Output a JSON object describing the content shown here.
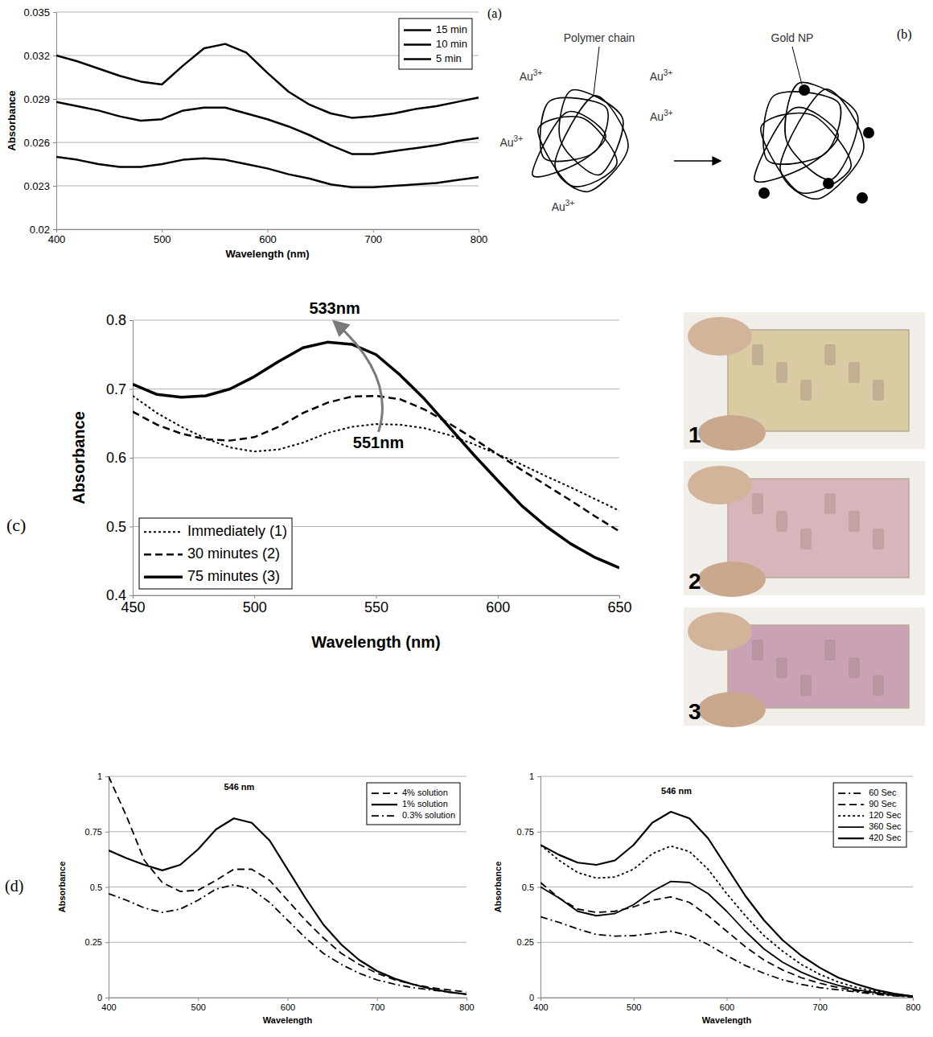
{
  "chart_data": [
    {
      "type": "line",
      "panel_label": "(a)",
      "x_label": "Wavelength (nm)",
      "y_label": "Absorbance",
      "x": [
        400,
        420,
        440,
        460,
        480,
        500,
        520,
        540,
        560,
        580,
        600,
        620,
        640,
        660,
        680,
        700,
        720,
        740,
        760,
        780,
        800
      ],
      "xlim": [
        400,
        800
      ],
      "xticks": [
        400,
        500,
        600,
        700,
        800
      ],
      "ylim": [
        0.02,
        0.035
      ],
      "yticks": [
        0.02,
        0.023,
        0.026,
        0.029,
        0.032,
        0.035
      ],
      "grid": true,
      "legend": "upper right",
      "series": [
        {
          "name": "15 min",
          "color": "#000000",
          "line_style": "solid",
          "values": [
            0.032,
            0.0316,
            0.0311,
            0.0306,
            0.0302,
            0.03,
            0.0313,
            0.0325,
            0.0328,
            0.0322,
            0.0308,
            0.0295,
            0.0286,
            0.028,
            0.0277,
            0.0278,
            0.028,
            0.0283,
            0.0285,
            0.0288,
            0.0291
          ]
        },
        {
          "name": "10 min",
          "color": "#000000",
          "line_style": "solid",
          "values": [
            0.0288,
            0.0285,
            0.0282,
            0.0278,
            0.0275,
            0.0276,
            0.0282,
            0.0284,
            0.0284,
            0.028,
            0.0276,
            0.0271,
            0.0265,
            0.0258,
            0.0252,
            0.0252,
            0.0254,
            0.0256,
            0.0258,
            0.0261,
            0.0263
          ]
        },
        {
          "name": "5 min",
          "color": "#000000",
          "line_style": "solid",
          "values": [
            0.025,
            0.0248,
            0.0245,
            0.0243,
            0.0243,
            0.0245,
            0.0248,
            0.0249,
            0.0248,
            0.0245,
            0.0242,
            0.0238,
            0.0235,
            0.0231,
            0.0229,
            0.0229,
            0.023,
            0.0231,
            0.0232,
            0.0234,
            0.0236
          ]
        }
      ]
    },
    {
      "type": "line",
      "panel_label": "(c)",
      "x_label": "Wavelength (nm)",
      "y_label": "Absorbance",
      "x": [
        450,
        460,
        470,
        480,
        490,
        500,
        510,
        520,
        530,
        540,
        550,
        560,
        570,
        580,
        590,
        600,
        610,
        620,
        630,
        640,
        650
      ],
      "xlim": [
        450,
        650
      ],
      "xticks": [
        450,
        500,
        550,
        600,
        650
      ],
      "ylim": [
        0.4,
        0.8
      ],
      "yticks": [
        0.4,
        0.5,
        0.6,
        0.7,
        0.8
      ],
      "grid": true,
      "legend": "lower left",
      "annotations": [
        {
          "text": "533nm",
          "x": 533,
          "y": 0.815
        },
        {
          "text": "551nm",
          "x": 551,
          "y": 0.62
        }
      ],
      "series": [
        {
          "name": "Immediately (1)",
          "color": "#000000",
          "line_style": "dotted",
          "values": [
            0.69,
            0.665,
            0.645,
            0.628,
            0.615,
            0.609,
            0.612,
            0.622,
            0.636,
            0.645,
            0.649,
            0.648,
            0.643,
            0.633,
            0.62,
            0.605,
            0.59,
            0.573,
            0.557,
            0.54,
            0.523
          ]
        },
        {
          "name": "30 minutes (2)",
          "color": "#000000",
          "line_style": "dashed",
          "values": [
            0.667,
            0.648,
            0.635,
            0.627,
            0.625,
            0.63,
            0.645,
            0.665,
            0.68,
            0.689,
            0.69,
            0.685,
            0.67,
            0.65,
            0.628,
            0.605,
            0.582,
            0.56,
            0.538,
            0.515,
            0.493
          ]
        },
        {
          "name": "75 minutes (3)",
          "color": "#000000",
          "line_style": "solid",
          "values": [
            0.707,
            0.692,
            0.688,
            0.69,
            0.7,
            0.718,
            0.74,
            0.76,
            0.768,
            0.765,
            0.75,
            0.72,
            0.685,
            0.645,
            0.605,
            0.567,
            0.53,
            0.5,
            0.475,
            0.455,
            0.44
          ]
        }
      ]
    },
    {
      "type": "line",
      "panel_label": "(d)",
      "x_label": "Wavelength",
      "y_label": "Absorbance",
      "x": [
        400,
        420,
        440,
        460,
        480,
        500,
        520,
        540,
        560,
        580,
        600,
        620,
        640,
        660,
        680,
        700,
        720,
        740,
        760,
        780,
        800
      ],
      "xlim": [
        400,
        800
      ],
      "xticks": [
        400,
        500,
        600,
        700,
        800
      ],
      "ylim": [
        0,
        1
      ],
      "yticks": [
        0,
        0.25,
        0.5,
        0.75,
        1
      ],
      "grid": true,
      "legend": "upper right",
      "annotations": [
        {
          "text": "546 nm",
          "x": 546,
          "y": 0.95
        }
      ],
      "series": [
        {
          "name": "4% solution",
          "color": "#000000",
          "line_style": "dashed",
          "values": [
            1.0,
            0.82,
            0.62,
            0.52,
            0.48,
            0.485,
            0.53,
            0.58,
            0.58,
            0.53,
            0.44,
            0.35,
            0.27,
            0.2,
            0.15,
            0.11,
            0.08,
            0.06,
            0.045,
            0.035,
            0.025
          ]
        },
        {
          "name": "1% solution",
          "color": "#000000",
          "line_style": "solid",
          "values": [
            0.665,
            0.63,
            0.6,
            0.575,
            0.6,
            0.67,
            0.76,
            0.81,
            0.79,
            0.71,
            0.58,
            0.45,
            0.33,
            0.24,
            0.17,
            0.12,
            0.085,
            0.06,
            0.04,
            0.025,
            0.015
          ]
        },
        {
          "name": "0.3% solution",
          "color": "#000000",
          "line_style": "dashdot",
          "values": [
            0.47,
            0.44,
            0.405,
            0.385,
            0.4,
            0.44,
            0.49,
            0.51,
            0.49,
            0.43,
            0.35,
            0.27,
            0.2,
            0.15,
            0.11,
            0.08,
            0.06,
            0.045,
            0.035,
            0.025,
            0.015
          ]
        }
      ]
    },
    {
      "type": "line",
      "x_label": "Wavelength",
      "y_label": "Absorbance",
      "x": [
        400,
        420,
        440,
        460,
        480,
        500,
        520,
        540,
        560,
        580,
        600,
        620,
        640,
        660,
        680,
        700,
        720,
        740,
        760,
        780,
        800
      ],
      "xlim": [
        400,
        800
      ],
      "xticks": [
        400,
        500,
        600,
        700,
        800
      ],
      "ylim": [
        0,
        1
      ],
      "yticks": [
        0,
        0.25,
        0.5,
        0.75,
        1
      ],
      "grid": true,
      "legend": "upper right",
      "annotations": [
        {
          "text": "546 nm",
          "x": 546,
          "y": 0.93
        }
      ],
      "series": [
        {
          "name": "60 Sec",
          "color": "#000000",
          "line_style": "dashdot",
          "values": [
            0.365,
            0.34,
            0.31,
            0.285,
            0.278,
            0.28,
            0.29,
            0.3,
            0.28,
            0.24,
            0.19,
            0.145,
            0.11,
            0.08,
            0.06,
            0.045,
            0.035,
            0.025,
            0.015,
            0.008,
            0.003
          ]
        },
        {
          "name": "90 Sec",
          "color": "#000000",
          "line_style": "dashed",
          "values": [
            0.52,
            0.45,
            0.4,
            0.385,
            0.39,
            0.41,
            0.44,
            0.455,
            0.43,
            0.37,
            0.3,
            0.23,
            0.17,
            0.125,
            0.09,
            0.065,
            0.045,
            0.03,
            0.02,
            0.01,
            0.004
          ]
        },
        {
          "name": "120 Sec",
          "color": "#000000",
          "line_style": "dotted",
          "values": [
            0.69,
            0.62,
            0.565,
            0.54,
            0.545,
            0.58,
            0.65,
            0.685,
            0.66,
            0.58,
            0.47,
            0.37,
            0.28,
            0.21,
            0.15,
            0.105,
            0.07,
            0.045,
            0.028,
            0.015,
            0.006
          ]
        },
        {
          "name": "360 Sec",
          "color": "#000000",
          "line_style": "solid",
          "values": [
            0.5,
            0.45,
            0.39,
            0.37,
            0.38,
            0.42,
            0.48,
            0.525,
            0.52,
            0.47,
            0.39,
            0.3,
            0.22,
            0.16,
            0.115,
            0.08,
            0.055,
            0.035,
            0.022,
            0.012,
            0.005
          ]
        },
        {
          "name": "420 Sec",
          "color": "#000000",
          "line_style": "solid",
          "values": [
            0.69,
            0.645,
            0.61,
            0.6,
            0.62,
            0.69,
            0.79,
            0.84,
            0.81,
            0.72,
            0.59,
            0.46,
            0.35,
            0.26,
            0.19,
            0.135,
            0.09,
            0.06,
            0.035,
            0.018,
            0.006
          ]
        }
      ]
    }
  ],
  "diagram": {
    "panel_label": "(b)",
    "polymer_label": "Polymer chain",
    "nanoparticle_label": "Gold NP",
    "ions": [
      "Au3+",
      "Au3+",
      "Au3+",
      "Au3+",
      "Au3+"
    ]
  },
  "photos": {
    "labels": [
      "1",
      "2",
      "3"
    ]
  }
}
